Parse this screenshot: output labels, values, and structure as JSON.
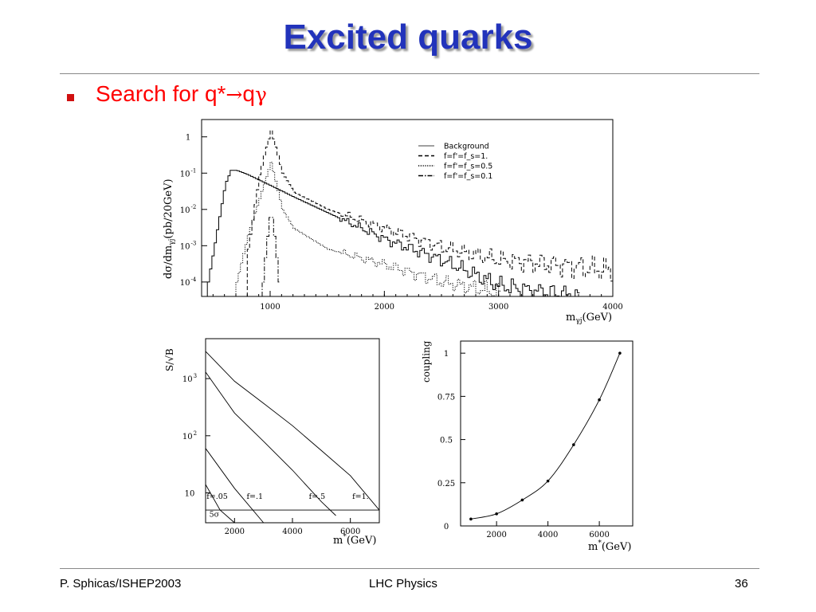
{
  "slide": {
    "title": "Excited quarks",
    "bullet_prefix": "Search for q*",
    "bullet_arrow": "→",
    "bullet_q": "q",
    "bullet_gamma": "γ",
    "footer_left": "P. Sphicas/ISHEP2003",
    "footer_center": "LHC Physics",
    "footer_right": "36"
  },
  "chart_data": [
    {
      "type": "line",
      "ylabel": "dσ/dm_γj(pb/20GeV)",
      "xlabel": "m_γj(GeV)",
      "y_scale": "log",
      "xlim": [
        400,
        4000
      ],
      "ylim": [
        4e-05,
        3
      ],
      "x_ticks": [
        "1000",
        "2000",
        "3000",
        "4000"
      ],
      "y_ticks": [
        "1",
        "10^-1",
        "10^-2",
        "10^-3",
        "10^-4"
      ],
      "legend_position": "top-right",
      "series": [
        {
          "name": "Background",
          "style": "solid",
          "x": [
            450,
            600,
            650,
            700,
            800,
            1000,
            1200,
            1500,
            2000,
            2500,
            3000,
            3400,
            3700
          ],
          "y": [
            0.0001,
            0.05,
            0.12,
            0.12,
            0.09,
            0.045,
            0.022,
            0.008,
            0.0015,
            0.0004,
            8e-05,
            5e-05,
            4e-05
          ]
        },
        {
          "name": "f=f'=f_s=1.",
          "style": "dashed",
          "x": [
            800,
            900,
            950,
            1000,
            1050,
            1100,
            1200,
            1500,
            2000,
            2500,
            3000,
            3500,
            4000
          ],
          "y": [
            0.0008,
            0.09,
            0.4,
            1.5,
            0.4,
            0.1,
            0.03,
            0.01,
            0.003,
            0.0009,
            0.0004,
            0.0003,
            0.0002
          ]
        },
        {
          "name": "f=f'=f_s=0.5",
          "style": "dotted",
          "x": [
            700,
            800,
            900,
            1000,
            1100,
            1200,
            1500,
            2000,
            2500,
            3000
          ],
          "y": [
            0.0001,
            0.002,
            0.02,
            0.2,
            0.01,
            0.003,
            0.0008,
            0.0003,
            0.0001,
            5e-05
          ]
        },
        {
          "name": "f=f'=f_s=0.1",
          "style": "dashdot",
          "x": [
            930,
            960,
            990,
            1000,
            1010,
            1040,
            1070
          ],
          "y": [
            0.0001,
            0.001,
            0.006,
            0.009,
            0.006,
            0.001,
            0.0001
          ]
        }
      ]
    },
    {
      "type": "line",
      "ylabel": "S/√B",
      "xlabel": "m*(GeV)",
      "y_scale": "log",
      "xlim": [
        1000,
        7000
      ],
      "ylim": [
        3,
        5000
      ],
      "x_ticks": [
        "2000",
        "4000",
        "6000"
      ],
      "y_ticks": [
        "10^3",
        "10^2",
        "10"
      ],
      "annotations": [
        "f=.05",
        "f=.1",
        "f=.5",
        "f=1.",
        "5σ"
      ],
      "series": [
        {
          "name": "f=1.",
          "x": [
            1000,
            2000,
            3000,
            4000,
            5000,
            6000,
            7000
          ],
          "y": [
            3000,
            900,
            370,
            150,
            55,
            20,
            5
          ]
        },
        {
          "name": "f=.5",
          "x": [
            1000,
            2000,
            3000,
            4000,
            5000,
            5500
          ],
          "y": [
            1300,
            250,
            80,
            25,
            7,
            4
          ]
        },
        {
          "name": "f=.1",
          "x": [
            1000,
            2000,
            3000
          ],
          "y": [
            60,
            12,
            3
          ]
        },
        {
          "name": "f=.05",
          "x": [
            1000,
            1500,
            2000
          ],
          "y": [
            14,
            5,
            3
          ]
        },
        {
          "name": "5σ",
          "x": [
            1000,
            7000
          ],
          "y": [
            5,
            5
          ]
        }
      ]
    },
    {
      "type": "scatter",
      "ylabel": "coupling",
      "xlabel": "m*(GeV)",
      "xlim": [
        600,
        7300
      ],
      "ylim": [
        0,
        1.07
      ],
      "x_ticks": [
        "2000",
        "4000",
        "6000"
      ],
      "y_ticks": [
        "0",
        "0.25",
        "0.5",
        "0.75",
        "1"
      ],
      "x": [
        1000,
        2000,
        3000,
        4000,
        5000,
        6000,
        6800
      ],
      "y": [
        0.04,
        0.07,
        0.15,
        0.26,
        0.47,
        0.73,
        1.0
      ],
      "fit": "smooth curve through points"
    }
  ]
}
